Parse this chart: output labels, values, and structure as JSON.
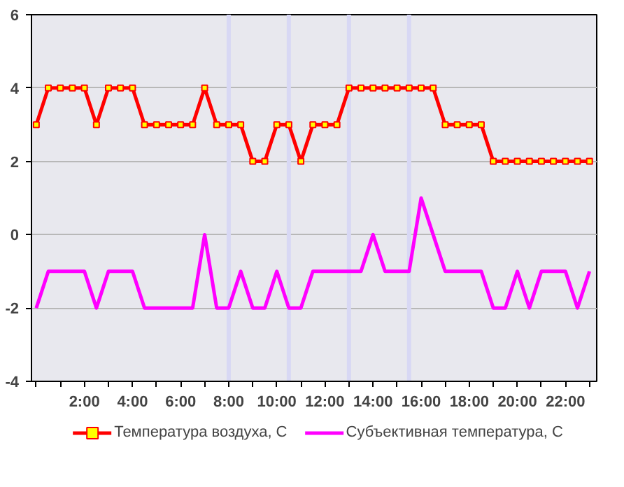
{
  "chart_data": {
    "type": "line",
    "x": [
      0,
      0.5,
      1,
      1.5,
      2,
      2.5,
      3,
      3.5,
      4,
      4.5,
      5,
      5.5,
      6,
      6.5,
      7,
      7.5,
      8,
      8.5,
      9,
      9.5,
      10,
      10.5,
      11,
      11.5,
      12,
      12.5,
      13,
      13.5,
      14,
      14.5,
      15,
      15.5,
      16,
      16.5,
      17,
      17.5,
      18,
      18.5,
      19,
      19.5,
      20,
      20.5,
      21,
      21.5,
      22,
      22.5,
      23
    ],
    "series": [
      {
        "name": "Температура воздуха, С",
        "color": "#ff0000",
        "marker": "square",
        "values": [
          3,
          4,
          4,
          4,
          4,
          3,
          4,
          4,
          4,
          3,
          3,
          3,
          3,
          3,
          4,
          3,
          3,
          3,
          2,
          2,
          3,
          3,
          2,
          3,
          3,
          3,
          4,
          4,
          4,
          4,
          4,
          4,
          4,
          4,
          3,
          3,
          3,
          3,
          2,
          2,
          2,
          2,
          2,
          2,
          2,
          2,
          2
        ]
      },
      {
        "name": "Субъективная температура, С",
        "color": "#ff00ff",
        "marker": "none",
        "values": [
          -2,
          -1,
          -1,
          -1,
          -1,
          -2,
          -1,
          -1,
          -1,
          -2,
          -2,
          -2,
          -2,
          -2,
          0,
          -2,
          -2,
          -1,
          -2,
          -2,
          -1,
          -2,
          -2,
          -1,
          -1,
          -1,
          -1,
          -1,
          0,
          -1,
          -1,
          -1,
          1,
          0,
          -1,
          -1,
          -1,
          -1,
          -2,
          -2,
          -1,
          -2,
          -1,
          -1,
          -1,
          -2,
          -1
        ]
      }
    ],
    "xlim": [
      -0.2,
      23.3
    ],
    "xticks": [
      {
        "value": 0,
        "label": null
      },
      {
        "value": 1,
        "label": null
      },
      {
        "value": 2,
        "label": "2:00"
      },
      {
        "value": 3,
        "label": null
      },
      {
        "value": 4,
        "label": "4:00"
      },
      {
        "value": 5,
        "label": null
      },
      {
        "value": 6,
        "label": "6:00"
      },
      {
        "value": 7,
        "label": null
      },
      {
        "value": 8,
        "label": "8:00"
      },
      {
        "value": 9,
        "label": null
      },
      {
        "value": 10,
        "label": "10:00"
      },
      {
        "value": 11,
        "label": null
      },
      {
        "value": 12,
        "label": "12:00"
      },
      {
        "value": 13,
        "label": null
      },
      {
        "value": 14,
        "label": "14:00"
      },
      {
        "value": 15,
        "label": null
      },
      {
        "value": 16,
        "label": "16:00"
      },
      {
        "value": 17,
        "label": null
      },
      {
        "value": 18,
        "label": "18:00"
      },
      {
        "value": 19,
        "label": null
      },
      {
        "value": 20,
        "label": "20:00"
      },
      {
        "value": 21,
        "label": null
      },
      {
        "value": 22,
        "label": "22:00"
      },
      {
        "value": 23,
        "label": null
      }
    ],
    "ylim": [
      -4,
      6
    ],
    "yticks": [
      -4,
      -2,
      0,
      2,
      4,
      6
    ],
    "grid": "y",
    "legend": "bottom",
    "line_style": "solid",
    "ref_lines": [
      {
        "axis": "x",
        "value": 8,
        "color": "#d8d8f4"
      },
      {
        "axis": "x",
        "value": 10.5,
        "color": "#d8d8f4"
      },
      {
        "axis": "x",
        "value": 13,
        "color": "#d8d8f4"
      },
      {
        "axis": "x",
        "value": 15.5,
        "color": "#d8d8f4"
      }
    ]
  }
}
